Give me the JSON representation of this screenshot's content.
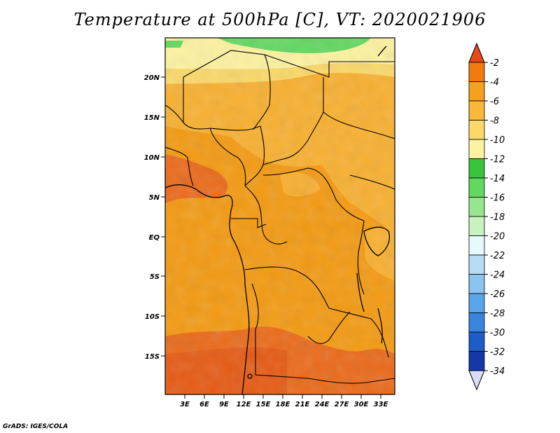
{
  "title": "Temperature at 500hPa [C], VT: 2020021906",
  "credit": "GrADS: IGES/COLA",
  "map": {
    "lat_ticks": [
      "20N",
      "15N",
      "10N",
      "5N",
      "EQ",
      "5S",
      "10S",
      "15S"
    ],
    "lon_ticks": [
      "3E",
      "6E",
      "9E",
      "12E",
      "15E",
      "18E",
      "21E",
      "24E",
      "27E",
      "30E",
      "33E"
    ]
  },
  "colorbar": {
    "labels": [
      "-2",
      "-4",
      "-6",
      "-8",
      "-10",
      "-12",
      "-14",
      "-16",
      "-18",
      "-20",
      "-22",
      "-24",
      "-26",
      "-28",
      "-30",
      "-32",
      "-34"
    ],
    "colors": [
      "#e8481c",
      "#f07c10",
      "#f6a01e",
      "#f9b83a",
      "#fbd868",
      "#fdf2a0",
      "#38c43c",
      "#62d860",
      "#96e68e",
      "#c8f2c0",
      "#e6fafc",
      "#b6dcf6",
      "#8cc4f0",
      "#5aa4ea",
      "#3a84de",
      "#1e5cc8",
      "#1438a8",
      "#0c1870"
    ],
    "top_color": "#e8481c",
    "bottom_color": "#d8dcf4"
  }
}
